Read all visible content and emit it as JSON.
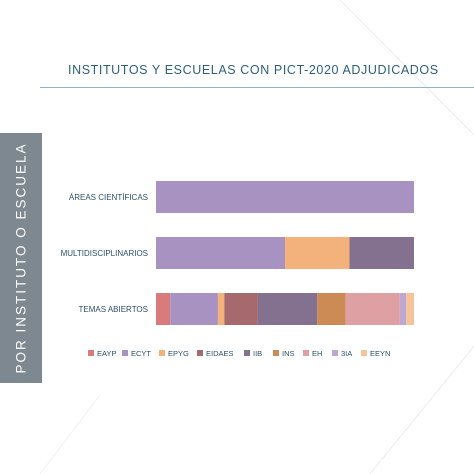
{
  "header": {
    "title": "INSTITUTOS Y ESCUELAS CON PICT-2020 ADJUDICADOS"
  },
  "sidebar": {
    "label": "POR INSTITUTO O ESCUELA",
    "color": "#7e8890"
  },
  "chart_data": {
    "type": "bar",
    "orientation": "horizontal",
    "stacked": true,
    "normalized": true,
    "categories": [
      "ÁREAS CIENTÍFICAS",
      "MULTIDISCIPLINARIOS",
      "TEMAS ABIERTOS"
    ],
    "series": [
      {
        "name": "EAYP",
        "color": "#d97b7b",
        "values": [
          0,
          0,
          0.055
        ]
      },
      {
        "name": "ECYT",
        "color": "#a892c2",
        "values": [
          1.0,
          0.5,
          0.185
        ]
      },
      {
        "name": "EPYG",
        "color": "#f3b27c",
        "values": [
          0,
          0.25,
          0.025
        ]
      },
      {
        "name": "EIDAES",
        "color": "#a66a6e",
        "values": [
          0,
          0,
          0.13
        ]
      },
      {
        "name": "IIB",
        "color": "#84718f",
        "values": [
          0,
          0.25,
          0.23
        ]
      },
      {
        "name": "INS",
        "color": "#cc8a55",
        "values": [
          0,
          0,
          0.11
        ]
      },
      {
        "name": "EH",
        "color": "#dfa0a3",
        "values": [
          0,
          0,
          0.21
        ]
      },
      {
        "name": "3IA",
        "color": "#bea7d0",
        "values": [
          0,
          0,
          0.025
        ]
      },
      {
        "name": "EEYN",
        "color": "#f7c39a",
        "values": [
          0,
          0,
          0.03
        ]
      }
    ],
    "xlim": [
      0,
      1
    ],
    "grid": false,
    "legend": "bottom"
  }
}
